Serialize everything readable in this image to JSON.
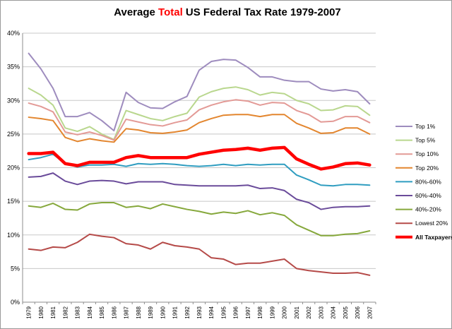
{
  "chart_data": {
    "type": "line",
    "title": {
      "prefix": "Average ",
      "highlight": "Total",
      "suffix": " US Federal Tax Rate  1979-2007"
    },
    "xlabel": "",
    "ylabel": "",
    "x": [
      "1979",
      "1980",
      "1981",
      "1982",
      "1983",
      "1984",
      "1985",
      "1986",
      "1987",
      "1988",
      "1989",
      "1990",
      "1991",
      "1992",
      "1993",
      "1994",
      "1995",
      "1996",
      "1997",
      "1998",
      "1999",
      "2000",
      "2001",
      "2002",
      "2003",
      "2004",
      "2005",
      "2006",
      "2007"
    ],
    "ylim": [
      0,
      40
    ],
    "yticks": [
      0,
      5,
      10,
      15,
      20,
      25,
      30,
      35,
      40
    ],
    "ytick_labels": [
      "0%",
      "5%",
      "10%",
      "15%",
      "20%",
      "25%",
      "30%",
      "35%",
      "40%"
    ],
    "grid": "horizontal",
    "legend_position": "right",
    "series": [
      {
        "name": "Top 1%",
        "color": "#9e8cbe",
        "width": 2,
        "values": [
          37.0,
          34.7,
          31.8,
          27.6,
          27.6,
          28.2,
          27.0,
          25.5,
          31.2,
          29.7,
          28.9,
          28.8,
          29.8,
          30.6,
          34.5,
          35.8,
          36.1,
          36.0,
          34.9,
          33.5,
          33.5,
          33.0,
          32.8,
          32.8,
          31.7,
          31.4,
          31.6,
          31.3,
          29.5
        ]
      },
      {
        "name": "Top 5%",
        "color": "#b9d78e",
        "width": 2,
        "values": [
          31.8,
          30.8,
          29.3,
          25.9,
          25.4,
          26.1,
          25.0,
          24.2,
          28.5,
          27.9,
          27.3,
          27.0,
          27.6,
          28.1,
          30.5,
          31.3,
          31.8,
          32.0,
          31.6,
          30.8,
          31.2,
          31.0,
          30.0,
          29.5,
          28.5,
          28.6,
          29.2,
          29.1,
          27.8
        ]
      },
      {
        "name": "Top 10%",
        "color": "#e39a96",
        "width": 2,
        "values": [
          29.6,
          29.1,
          28.3,
          25.3,
          24.9,
          25.3,
          24.8,
          24.1,
          27.2,
          26.8,
          26.4,
          26.2,
          26.7,
          27.1,
          28.6,
          29.3,
          29.8,
          30.1,
          29.9,
          29.3,
          29.7,
          29.6,
          28.5,
          27.9,
          26.8,
          26.9,
          27.6,
          27.6,
          26.7
        ]
      },
      {
        "name": "Top 20%",
        "color": "#e3862f",
        "width": 2,
        "values": [
          27.5,
          27.3,
          27.0,
          24.5,
          23.9,
          24.3,
          24.0,
          23.8,
          25.8,
          25.6,
          25.2,
          25.1,
          25.3,
          25.6,
          26.7,
          27.3,
          27.8,
          27.9,
          27.9,
          27.6,
          27.9,
          27.9,
          26.6,
          25.9,
          25.1,
          25.2,
          25.9,
          25.9,
          25.0
        ]
      },
      {
        "name": "80%-60%",
        "color": "#2f9dc0",
        "width": 2,
        "values": [
          21.2,
          21.5,
          22.0,
          20.6,
          20.1,
          20.4,
          20.4,
          20.5,
          20.2,
          20.6,
          20.5,
          20.6,
          20.5,
          20.3,
          20.2,
          20.3,
          20.5,
          20.3,
          20.5,
          20.4,
          20.5,
          20.5,
          18.9,
          18.2,
          17.4,
          17.3,
          17.5,
          17.5,
          17.4
        ]
      },
      {
        "name": "60%-40%",
        "color": "#6a4b9a",
        "width": 2,
        "values": [
          18.6,
          18.7,
          19.2,
          18.0,
          17.5,
          18.0,
          18.1,
          18.0,
          17.6,
          17.9,
          17.9,
          17.9,
          17.5,
          17.4,
          17.3,
          17.3,
          17.3,
          17.3,
          17.4,
          16.9,
          17.0,
          16.6,
          15.3,
          14.8,
          13.8,
          14.1,
          14.2,
          14.2,
          14.3
        ]
      },
      {
        "name": "40%-20%",
        "color": "#86a83c",
        "width": 2,
        "values": [
          14.3,
          14.1,
          14.7,
          13.8,
          13.7,
          14.6,
          14.8,
          14.8,
          14.1,
          14.3,
          13.9,
          14.6,
          14.2,
          13.8,
          13.5,
          13.1,
          13.4,
          13.2,
          13.6,
          13.0,
          13.3,
          12.9,
          11.5,
          10.7,
          9.9,
          9.9,
          10.1,
          10.2,
          10.6
        ]
      },
      {
        "name": "Lowest 20%",
        "color": "#b54a48",
        "width": 2,
        "values": [
          7.9,
          7.7,
          8.2,
          8.1,
          8.9,
          10.1,
          9.8,
          9.6,
          8.7,
          8.5,
          7.9,
          8.9,
          8.4,
          8.2,
          7.9,
          6.6,
          6.4,
          5.6,
          5.8,
          5.8,
          6.1,
          6.4,
          5.0,
          4.7,
          4.5,
          4.3,
          4.3,
          4.4,
          4.0
        ]
      },
      {
        "name": "All Taxpayers",
        "color": "#ff0000",
        "width": 4.5,
        "values": [
          22.1,
          22.1,
          22.3,
          20.6,
          20.3,
          20.8,
          20.8,
          20.8,
          21.5,
          21.8,
          21.5,
          21.5,
          21.5,
          21.5,
          22.0,
          22.3,
          22.6,
          22.7,
          22.9,
          22.6,
          22.9,
          23.0,
          21.3,
          20.5,
          19.8,
          20.1,
          20.6,
          20.7,
          20.4
        ]
      }
    ]
  }
}
